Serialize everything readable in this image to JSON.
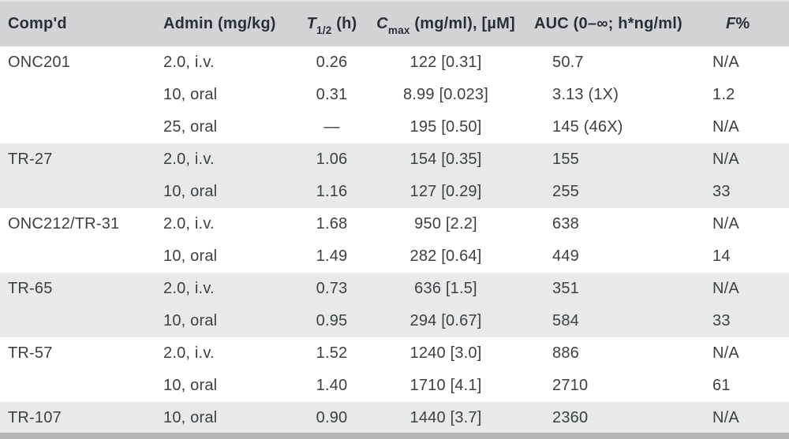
{
  "table": {
    "headers": {
      "compound": "Comp'd",
      "admin": "Admin (mg/kg)",
      "t_half": {
        "symbol": "T",
        "sub": "1/2",
        "rest": " (h)"
      },
      "cmax": {
        "symbol": "C",
        "sub": "max",
        "rest": " (mg/ml), [µM]"
      },
      "auc": "AUC (0–∞; h*ng/ml)",
      "f_pct": {
        "symbol": "F",
        "rest": "%"
      }
    },
    "rows": [
      {
        "compound": "ONC201",
        "admin": "2.0, i.v.",
        "t_half": "0.26",
        "cmax": "122 [0.31]",
        "auc": "50.7",
        "f": "N/A",
        "shade": false
      },
      {
        "compound": "",
        "admin": "10, oral",
        "t_half": "0.31",
        "cmax": "8.99 [0.023]",
        "auc": "3.13 (1X)",
        "f": "1.2",
        "shade": false
      },
      {
        "compound": "",
        "admin": "25, oral",
        "t_half": "—",
        "cmax": "195 [0.50]",
        "auc": "145 (46X)",
        "f": "N/A",
        "shade": false
      },
      {
        "compound": "TR-27",
        "admin": "2.0, i.v.",
        "t_half": "1.06",
        "cmax": "154 [0.35]",
        "auc": "155",
        "f": "N/A",
        "shade": true
      },
      {
        "compound": "",
        "admin": "10, oral",
        "t_half": "1.16",
        "cmax": "127 [0.29]",
        "auc": "255",
        "f": "33",
        "shade": true
      },
      {
        "compound": "ONC212/TR-31",
        "admin": "2.0, i.v.",
        "t_half": "1.68",
        "cmax": "950 [2.2]",
        "auc": "638",
        "f": "N/A",
        "shade": false
      },
      {
        "compound": "",
        "admin": "10, oral",
        "t_half": "1.49",
        "cmax": "282 [0.64]",
        "auc": "449",
        "f": "14",
        "shade": false
      },
      {
        "compound": "TR-65",
        "admin": "2.0, i.v.",
        "t_half": "0.73",
        "cmax": "636 [1.5]",
        "auc": "351",
        "f": "N/A",
        "shade": true
      },
      {
        "compound": "",
        "admin": "10, oral",
        "t_half": "0.95",
        "cmax": "294 [0.67]",
        "auc": "584",
        "f": "33",
        "shade": true
      },
      {
        "compound": "TR-57",
        "admin": "2.0, i.v.",
        "t_half": "1.52",
        "cmax": "1240 [3.0]",
        "auc": "886",
        "f": "N/A",
        "shade": false
      },
      {
        "compound": "",
        "admin": "10, oral",
        "t_half": "1.40",
        "cmax": "1710 [4.1]",
        "auc": "2710",
        "f": "61",
        "shade": false
      },
      {
        "compound": "TR-107",
        "admin": "10, oral",
        "t_half": "0.90",
        "cmax": "1440 [3.7]",
        "auc": "2360",
        "f": "N/A",
        "shade": true
      }
    ],
    "colors": {
      "header_bg": "#d2d3d5",
      "shade_row_bg": "#e8eaea",
      "plain_row_bg": "#ffffff",
      "bottom_band": "#b2b4b6",
      "text": "#3c3f43"
    }
  }
}
